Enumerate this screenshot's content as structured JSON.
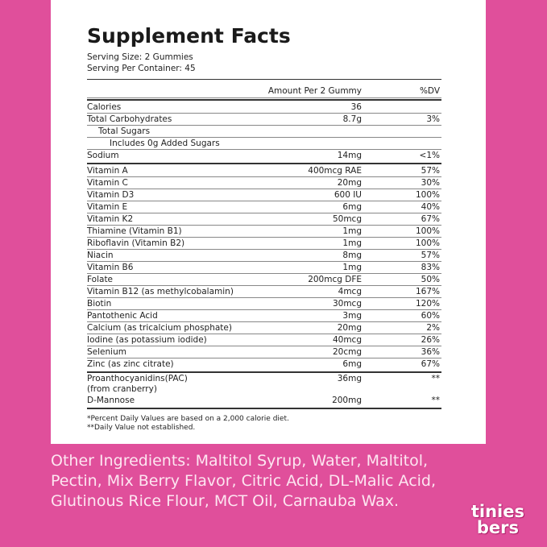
{
  "header": {
    "title": "Supplement Facts",
    "serving_size": "Serving Size: 2 Gummies",
    "serving_per_container": "Serving Per Container: 45"
  },
  "table": {
    "columns": [
      "Amount Per 2 Gummy",
      "%DV"
    ],
    "sections": [
      [
        [
          "Calories",
          "36",
          null
        ],
        [
          "Total Carbohydrates",
          "8.7g",
          "3%"
        ],
        [
          "Total Sugars",
          null,
          null
        ],
        [
          "Includes 0g Added Sugars",
          null,
          null
        ],
        [
          "Sodium",
          "14mg",
          "<1%"
        ]
      ],
      [
        [
          "Vitamin A",
          "400mcg RAE",
          "57%"
        ],
        [
          "Vitamin C",
          "20mg",
          "30%"
        ],
        [
          "Vitamin D3",
          "600 IU",
          "100%"
        ],
        [
          "Vitamin E",
          "6mg",
          "40%"
        ],
        [
          "Vitamin K2",
          "50mcg",
          "67%"
        ],
        [
          "Thiamine (Vitamin B1)",
          "1mg",
          "100%"
        ],
        [
          "Riboflavin (Vitamin B2)",
          "1mg",
          "100%"
        ],
        [
          "Niacin",
          "8mg",
          "57%"
        ],
        [
          "Vitamin B6",
          "1mg",
          "83%"
        ],
        [
          "Folate",
          "200mcg DFE",
          "50%"
        ],
        [
          "Vitamin B12 (as methylcobalamin)",
          "4mcg",
          "167%"
        ],
        [
          "Biotin",
          "30mcg",
          "120%"
        ],
        [
          "Pantothenic Acid",
          "3mg",
          "60%"
        ],
        [
          "Calcium (as tricalcium phosphate)",
          "20mg",
          "2%"
        ],
        [
          "Iodine (as potassium iodide)",
          "40mcg",
          "26%"
        ],
        [
          "Selenium",
          "20cmg",
          "36%"
        ],
        [
          "Zinc (as zinc citrate)",
          "6mg",
          "67%"
        ]
      ],
      [
        [
          "Proanthocyanidins(PAC)",
          "36mg",
          "**"
        ],
        [
          "(from cranberry)",
          null,
          null
        ],
        [
          "D-Mannose",
          "200mg",
          "**"
        ]
      ]
    ],
    "footnotes": [
      "*Percent Daily Values are based on a 2,000 calorie diet.",
      "**Daily Value not established."
    ]
  },
  "other_ingredients": "Other Ingredients: Maltitol Syrup, Water, Maltitol, Pectin, Mix Berry Flavor, Citric Acid, DL-Malic Acid, Glutinous Rice Flour, MCT Oil, Carnauba Wax.",
  "logo": {
    "top": "tinies",
    "bottom": "bers"
  }
}
